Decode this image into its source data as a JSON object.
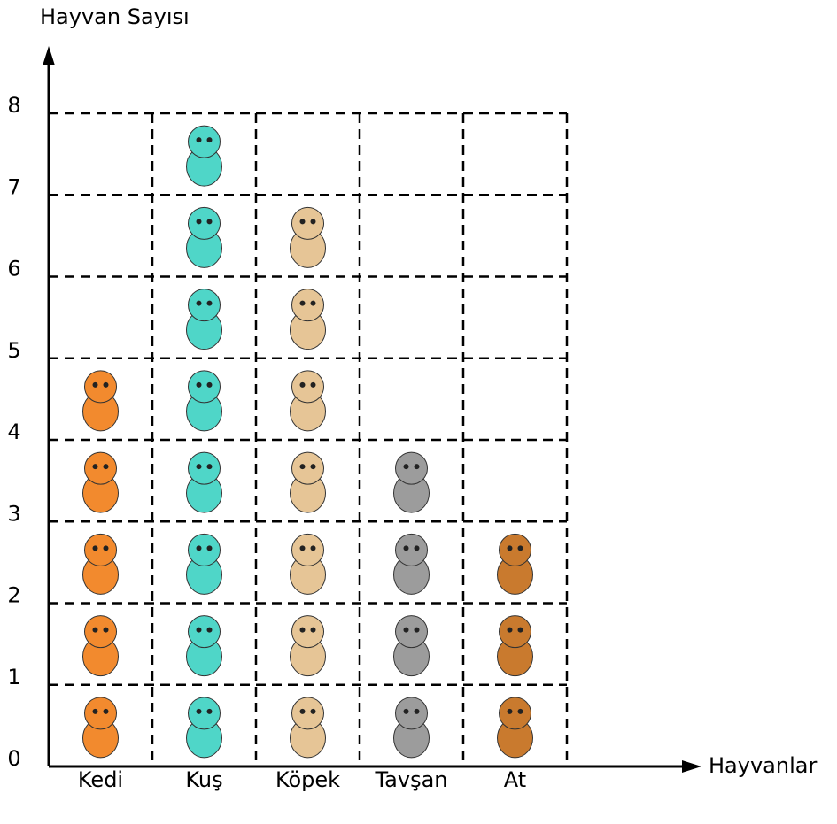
{
  "chart_data": {
    "type": "pictograph",
    "y_label": "Hayvan Sayısı",
    "x_label": "Hayvanlar",
    "categories": [
      "Kedi",
      "Kuş",
      "Köpek",
      "Tavşan",
      "At"
    ],
    "values": [
      5,
      8,
      7,
      4,
      3
    ],
    "colors": [
      "#f28a2e",
      "#4fd6c8",
      "#e6c596",
      "#9c9c9c",
      "#c97a2e"
    ],
    "ylim": [
      0,
      8
    ],
    "yticks": [
      0,
      1,
      2,
      3,
      4,
      5,
      6,
      7,
      8
    ],
    "grid": true
  }
}
